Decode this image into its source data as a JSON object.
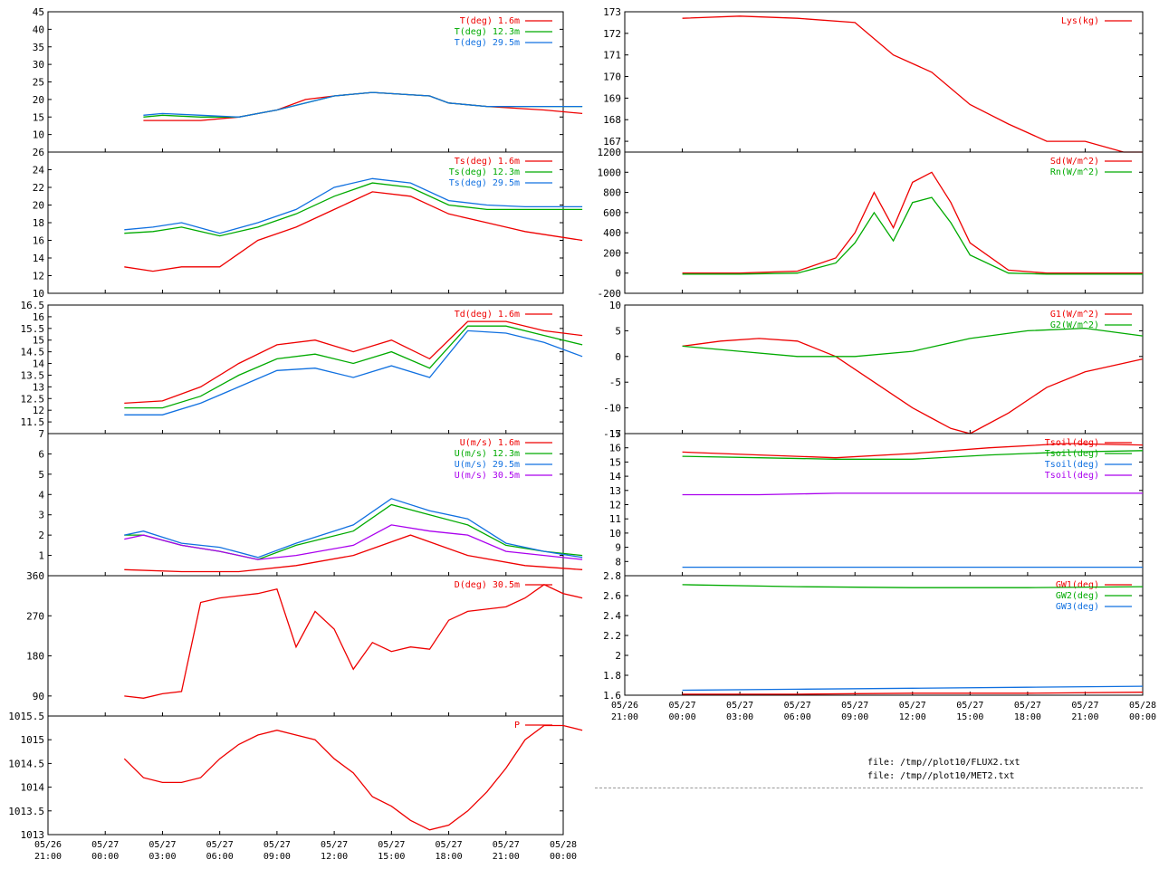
{
  "time_ticks": [
    {
      "date": "05/26",
      "time": "21:00"
    },
    {
      "date": "05/27",
      "time": "00:00"
    },
    {
      "date": "05/27",
      "time": "03:00"
    },
    {
      "date": "05/27",
      "time": "06:00"
    },
    {
      "date": "05/27",
      "time": "09:00"
    },
    {
      "date": "05/27",
      "time": "12:00"
    },
    {
      "date": "05/27",
      "time": "15:00"
    },
    {
      "date": "05/27",
      "time": "18:00"
    },
    {
      "date": "05/27",
      "time": "21:00"
    },
    {
      "date": "05/28",
      "time": "00:00"
    }
  ],
  "files": [
    "file: /tmp//plot10/FLUX2.txt",
    "file: /tmp//plot10/MET2.txt"
  ],
  "colors": {
    "red": "#ee0000",
    "green": "#00aa00",
    "blue": "#1070e0",
    "magenta": "#aa00ee"
  },
  "chart_data": [
    {
      "type": "line",
      "ylim": [
        5,
        45
      ],
      "yticks": [
        "10",
        "15",
        "20",
        "25",
        "30",
        "35",
        "40",
        "45"
      ],
      "series": [
        {
          "name": "T(deg)  1.6m",
          "color": "#ee0000",
          "x": [
            1,
            2,
            4,
            6,
            8,
            9.5,
            11,
            13,
            16,
            17,
            19,
            22,
            24
          ],
          "y": [
            14,
            14,
            14,
            15,
            17,
            20,
            21,
            22,
            21,
            19,
            18,
            17,
            16
          ]
        },
        {
          "name": "T(deg) 12.3m",
          "color": "#00aa00",
          "x": [
            1,
            2,
            4,
            6,
            8,
            9.5,
            11,
            13,
            16,
            17,
            19,
            22,
            24
          ],
          "y": [
            15,
            15.5,
            15,
            15,
            17,
            19,
            21,
            22,
            21,
            19,
            18,
            18,
            18
          ]
        },
        {
          "name": "T(deg) 29.5m",
          "color": "#1070e0",
          "x": [
            1,
            2,
            4,
            6,
            8,
            9.5,
            11,
            13,
            16,
            17,
            19,
            22,
            24
          ],
          "y": [
            15.5,
            16,
            15.5,
            15,
            17,
            19,
            21,
            22,
            21,
            19,
            18,
            18,
            18
          ]
        }
      ]
    },
    {
      "type": "line",
      "ylim": [
        10,
        26
      ],
      "yticks": [
        "10",
        "12",
        "14",
        "16",
        "18",
        "20",
        "22",
        "24",
        "26"
      ],
      "series": [
        {
          "name": "Ts(deg)  1.6m",
          "color": "#ee0000",
          "x": [
            0,
            1.5,
            3,
            5,
            7,
            9,
            11,
            13,
            15,
            17,
            19,
            21,
            24
          ],
          "y": [
            13,
            12.5,
            13,
            13,
            16,
            17.5,
            19.5,
            21.5,
            21,
            19,
            18,
            17,
            16
          ]
        },
        {
          "name": "Ts(deg) 12.3m",
          "color": "#00aa00",
          "x": [
            0,
            1.5,
            3,
            5,
            7,
            9,
            11,
            13,
            15,
            17,
            19,
            21,
            24
          ],
          "y": [
            16.8,
            17,
            17.5,
            16.5,
            17.5,
            19,
            21,
            22.5,
            22,
            20,
            19.5,
            19.5,
            19.5
          ]
        },
        {
          "name": "Ts(deg) 29.5m",
          "color": "#1070e0",
          "x": [
            0,
            1.5,
            3,
            5,
            7,
            9,
            11,
            13,
            15,
            17,
            19,
            21,
            24
          ],
          "y": [
            17.2,
            17.5,
            18,
            16.8,
            18,
            19.5,
            22,
            23,
            22.5,
            20.5,
            20,
            19.8,
            19.8
          ]
        }
      ]
    },
    {
      "type": "line",
      "ylim": [
        11,
        16.5
      ],
      "yticks": [
        "11.5",
        "12",
        "12.5",
        "13",
        "13.5",
        "14",
        "14.5",
        "15",
        "15.5",
        "16",
        "16.5"
      ],
      "series": [
        {
          "name": "Td(deg)  1.6m",
          "color": "#ee0000",
          "x": [
            0,
            2,
            4,
            6,
            8,
            10,
            12,
            14,
            16,
            18,
            20,
            22,
            24
          ],
          "y": [
            12.3,
            12.4,
            13,
            14,
            14.8,
            15,
            14.5,
            15,
            14.2,
            15.8,
            15.8,
            15.4,
            15.2
          ]
        },
        {
          "name": "",
          "color": "#00aa00",
          "x": [
            0,
            2,
            4,
            6,
            8,
            10,
            12,
            14,
            16,
            18,
            20,
            22,
            24
          ],
          "y": [
            12.1,
            12.1,
            12.6,
            13.5,
            14.2,
            14.4,
            14,
            14.5,
            13.8,
            15.6,
            15.6,
            15.2,
            14.8
          ]
        },
        {
          "name": "",
          "color": "#1070e0",
          "x": [
            0,
            2,
            4,
            6,
            8,
            10,
            12,
            14,
            16,
            18,
            20,
            22,
            24
          ],
          "y": [
            11.8,
            11.8,
            12.3,
            13,
            13.7,
            13.8,
            13.4,
            13.9,
            13.4,
            15.4,
            15.3,
            14.9,
            14.3
          ]
        }
      ]
    },
    {
      "type": "line",
      "ylim": [
        0,
        7
      ],
      "yticks": [
        "1",
        "2",
        "3",
        "4",
        "5",
        "6",
        "7"
      ],
      "series": [
        {
          "name": "U(m/s)  1.6m",
          "color": "#ee0000",
          "x": [
            0,
            3,
            6,
            9,
            12,
            15,
            18,
            21,
            24
          ],
          "y": [
            0.3,
            0.2,
            0.2,
            0.5,
            1,
            2,
            1,
            0.5,
            0.3
          ]
        },
        {
          "name": "U(m/s) 12.3m",
          "color": "#00aa00",
          "x": [
            0,
            1,
            3,
            5,
            7,
            9,
            12,
            14,
            16,
            18,
            20,
            22,
            24
          ],
          "y": [
            2,
            2,
            1.5,
            1.2,
            0.8,
            1.5,
            2.2,
            3.5,
            3,
            2.5,
            1.5,
            1.2,
            1
          ]
        },
        {
          "name": "U(m/s) 29.5m",
          "color": "#1070e0",
          "x": [
            0,
            1,
            3,
            5,
            7,
            9,
            12,
            14,
            16,
            18,
            20,
            22,
            24
          ],
          "y": [
            2,
            2.2,
            1.6,
            1.4,
            0.9,
            1.6,
            2.5,
            3.8,
            3.2,
            2.8,
            1.6,
            1.2,
            0.9
          ]
        },
        {
          "name": "U(m/s) 30.5m",
          "color": "#aa00ee",
          "x": [
            0,
            1,
            3,
            5,
            7,
            9,
            12,
            14,
            16,
            18,
            20,
            22,
            24
          ],
          "y": [
            1.8,
            2,
            1.5,
            1.2,
            0.8,
            1,
            1.5,
            2.5,
            2.2,
            2,
            1.2,
            1,
            0.8
          ]
        }
      ]
    },
    {
      "type": "line",
      "ylim": [
        45,
        360
      ],
      "yticks": [
        "90",
        "180",
        "270",
        "360"
      ],
      "series": [
        {
          "name": "D(deg)  30.5m",
          "color": "#ee0000",
          "x": [
            0,
            1,
            2,
            3,
            4,
            5,
            6,
            7,
            8,
            9,
            10,
            11,
            12,
            13,
            14,
            15,
            16,
            17,
            18,
            19,
            20,
            21,
            22,
            23,
            24
          ],
          "y": [
            90,
            85,
            95,
            100,
            300,
            310,
            315,
            320,
            330,
            200,
            280,
            240,
            150,
            210,
            190,
            200,
            195,
            260,
            280,
            285,
            290,
            310,
            340,
            320,
            310
          ]
        }
      ]
    },
    {
      "type": "line",
      "ylim": [
        1013,
        1015.5
      ],
      "yticks": [
        "1013",
        "1013.5",
        "1014",
        "1014.5",
        "1015",
        "1015.5"
      ],
      "series": [
        {
          "name": "P",
          "color": "#ee0000",
          "x": [
            0,
            1,
            2,
            3,
            4,
            5,
            6,
            7,
            8,
            9,
            10,
            11,
            12,
            13,
            14,
            15,
            16,
            17,
            18,
            19,
            20,
            21,
            22,
            23,
            24
          ],
          "y": [
            1014.6,
            1014.2,
            1014.1,
            1014.1,
            1014.2,
            1014.6,
            1014.9,
            1015.1,
            1015.2,
            1015.1,
            1015.0,
            1014.6,
            1014.3,
            1013.8,
            1013.6,
            1013.3,
            1013.1,
            1013.2,
            1013.5,
            1013.9,
            1014.4,
            1015.0,
            1015.3,
            1015.3,
            1015.2
          ]
        }
      ]
    },
    {
      "type": "line",
      "ylim": [
        166.5,
        173
      ],
      "yticks": [
        "167",
        "168",
        "169",
        "170",
        "171",
        "172",
        "173"
      ],
      "series": [
        {
          "name": "Lys(kg)",
          "color": "#ee0000",
          "x": [
            0,
            3,
            6,
            9,
            11,
            13,
            15,
            17,
            19,
            21,
            23,
            24
          ],
          "y": [
            172.7,
            172.8,
            172.7,
            172.5,
            171,
            170.2,
            168.7,
            167.8,
            167,
            167,
            166.5,
            166.5
          ]
        }
      ]
    },
    {
      "type": "line",
      "ylim": [
        -200,
        1200
      ],
      "yticks": [
        "-200",
        "0",
        "200",
        "400",
        "600",
        "800",
        "1000",
        "1200"
      ],
      "series": [
        {
          "name": "Sd(W/m^2)",
          "color": "#ee0000",
          "x": [
            0,
            3,
            6,
            8,
            9,
            10,
            11,
            12,
            13,
            14,
            15,
            17,
            19,
            24
          ],
          "y": [
            0,
            0,
            20,
            150,
            400,
            800,
            450,
            900,
            1000,
            700,
            300,
            30,
            0,
            0
          ]
        },
        {
          "name": "Rn(W/m^2)",
          "color": "#00aa00",
          "x": [
            0,
            3,
            6,
            8,
            9,
            10,
            11,
            12,
            13,
            14,
            15,
            17,
            19,
            24
          ],
          "y": [
            -10,
            -10,
            0,
            100,
            300,
            600,
            320,
            700,
            750,
            500,
            180,
            0,
            -10,
            -10
          ]
        }
      ]
    },
    {
      "type": "line",
      "ylim": [
        -15,
        10
      ],
      "yticks": [
        "-15",
        "-10",
        "-5",
        "0",
        "5",
        "10"
      ],
      "series": [
        {
          "name": "G1(W/m^2)",
          "color": "#ee0000",
          "x": [
            0,
            2,
            4,
            6,
            8,
            10,
            12,
            13,
            14,
            15,
            17,
            19,
            21,
            24
          ],
          "y": [
            2,
            3,
            3.5,
            3,
            0,
            -5,
            -10,
            -12,
            -14,
            -15,
            -11,
            -6,
            -3,
            -0.5
          ]
        },
        {
          "name": "G2(W/m^2)",
          "color": "#00aa00",
          "x": [
            0,
            3,
            6,
            9,
            12,
            15,
            18,
            21,
            24
          ],
          "y": [
            2,
            1,
            0,
            0,
            1,
            3.5,
            5,
            5.5,
            4
          ]
        }
      ]
    },
    {
      "type": "line",
      "ylim": [
        7,
        17
      ],
      "yticks": [
        "8",
        "9",
        "10",
        "11",
        "12",
        "13",
        "14",
        "15",
        "16",
        "17"
      ],
      "series": [
        {
          "name": "Tsoil(deg)",
          "color": "#ee0000",
          "x": [
            0,
            4,
            8,
            12,
            16,
            20,
            24
          ],
          "y": [
            15.7,
            15.5,
            15.3,
            15.6,
            16,
            16.3,
            16.2
          ]
        },
        {
          "name": "Tsoil(deg)",
          "color": "#00aa00",
          "x": [
            0,
            4,
            8,
            12,
            16,
            20,
            24
          ],
          "y": [
            15.4,
            15.3,
            15.2,
            15.2,
            15.5,
            15.7,
            15.8
          ]
        },
        {
          "name": "Tsoil(deg)",
          "color": "#1070e0",
          "x": [
            0,
            4,
            8,
            12,
            16,
            20,
            24
          ],
          "y": [
            7.6,
            7.6,
            7.6,
            7.6,
            7.6,
            7.6,
            7.6
          ]
        },
        {
          "name": "Tsoil(deg)",
          "color": "#aa00ee",
          "x": [
            0,
            4,
            8,
            12,
            16,
            20,
            24
          ],
          "y": [
            12.7,
            12.7,
            12.8,
            12.8,
            12.8,
            12.8,
            12.8
          ]
        }
      ]
    },
    {
      "type": "line",
      "ylim": [
        1.6,
        2.8
      ],
      "yticks": [
        "1.6",
        "1.8",
        "2",
        "2.2",
        "2.4",
        "2.6",
        "2.8"
      ],
      "series": [
        {
          "name": "GW1(deg)",
          "color": "#ee0000",
          "x": [
            0,
            6,
            12,
            18,
            24
          ],
          "y": [
            1.61,
            1.61,
            1.62,
            1.62,
            1.63
          ]
        },
        {
          "name": "GW2(deg)",
          "color": "#00aa00",
          "x": [
            0,
            6,
            12,
            18,
            24
          ],
          "y": [
            2.71,
            2.69,
            2.68,
            2.68,
            2.69
          ]
        },
        {
          "name": "GW3(deg)",
          "color": "#1070e0",
          "x": [
            0,
            6,
            12,
            18,
            24
          ],
          "y": [
            1.65,
            1.66,
            1.67,
            1.68,
            1.69
          ]
        }
      ]
    }
  ]
}
